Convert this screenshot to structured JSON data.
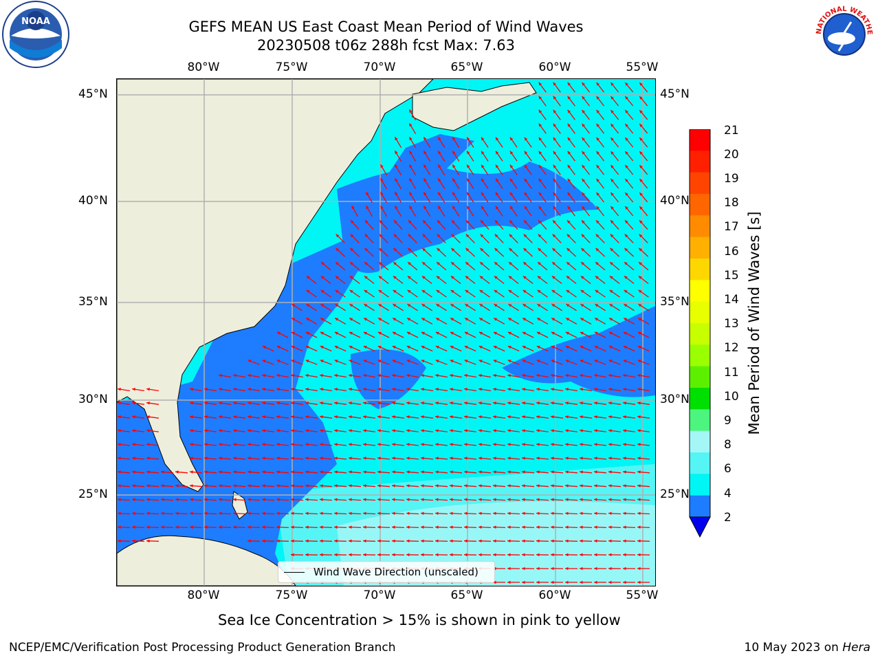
{
  "header": {
    "title": "GEFS MEAN US East Coast Mean Period of Wind Waves",
    "subtitle": "20230508 t06z 288h fcst   Max: 7.63"
  },
  "logos": {
    "left": {
      "text": "NOAA",
      "icon": "noaa-logo"
    },
    "right": {
      "text": "NATIONAL WEATHER SERVICE",
      "icon": "nws-logo"
    }
  },
  "map": {
    "lon_labels": [
      "80°W",
      "75°W",
      "70°W",
      "65°W",
      "60°W",
      "55°W"
    ],
    "lat_labels": [
      "45°N",
      "40°N",
      "35°N",
      "30°N",
      "25°N"
    ],
    "legend_label": "Wind Wave Direction (unscaled)",
    "colors": {
      "land": "#eeeedc",
      "band_2_4": "#1e7cff",
      "band_4_6": "#00f5f5",
      "band_6_7": "#55f5f5",
      "band_7_8": "#a7f7f7",
      "below_2": "#0000ee",
      "arrow": "#ff0000"
    }
  },
  "colorbar": {
    "label": "Mean Period of Wind Waves [s]",
    "ticks": [
      "21",
      "20",
      "19",
      "18",
      "17",
      "16",
      "15",
      "14",
      "13",
      "12",
      "11",
      "10",
      "9",
      "8",
      "6",
      "4",
      "2"
    ],
    "colors_top_to_bottom": [
      "#ff0000",
      "#ff2000",
      "#ff4400",
      "#ff6600",
      "#ff8c00",
      "#ffb000",
      "#ffd700",
      "#ffff00",
      "#e8ff00",
      "#c8ff00",
      "#9aff00",
      "#5cf000",
      "#00e000",
      "#4cf57e",
      "#a5f7f7",
      "#55f5f5",
      "#00f5f5",
      "#1e7cff"
    ],
    "under_color": "#0000ee"
  },
  "note": "Sea Ice Concentration > 15% is shown in pink to yellow",
  "footer": {
    "left": "NCEP/EMC/Verification Post Processing Product Generation Branch",
    "right_date": "10 May 2023 on ",
    "right_host": "Hera"
  }
}
